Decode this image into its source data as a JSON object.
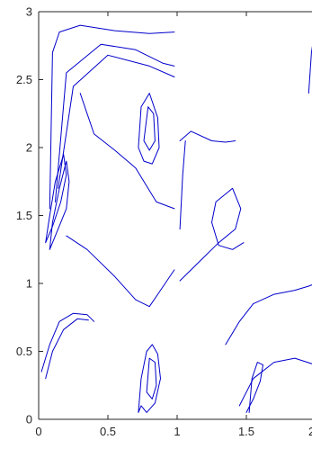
{
  "chart_data": {
    "type": "line",
    "title": "",
    "xlabel": "",
    "ylabel": "",
    "xlim": [
      0,
      2
    ],
    "ylim": [
      0,
      3
    ],
    "x_ticks": [
      0,
      0.5,
      1,
      1.5,
      2
    ],
    "x_tick_labels": [
      "0",
      "0.5",
      "1",
      "1.5",
      "2"
    ],
    "y_ticks": [
      0,
      0.5,
      1,
      1.5,
      2,
      2.5,
      3
    ],
    "y_tick_labels": [
      "0",
      "0.5",
      "1",
      "1.5",
      "2",
      "2.5",
      "3"
    ],
    "grid": false,
    "line_color": "#0000cc",
    "description_of_marks": "streamlines",
    "series": [
      {
        "x": [
          0.08,
          0.1,
          0.15,
          0.3,
          0.55,
          0.8,
          0.98
        ],
        "y": [
          1.55,
          2.7,
          2.85,
          2.9,
          2.86,
          2.84,
          2.85
        ]
      },
      {
        "x": [
          0.12,
          0.2,
          0.45,
          0.7,
          0.9,
          0.98
        ],
        "y": [
          1.6,
          2.55,
          2.76,
          2.72,
          2.62,
          2.6
        ]
      },
      {
        "x": [
          0.14,
          0.25,
          0.5,
          0.8,
          0.98
        ],
        "y": [
          1.7,
          2.45,
          2.68,
          2.6,
          2.52
        ]
      },
      {
        "x": [
          0.05,
          0.1,
          0.16,
          0.2,
          0.18,
          0.12,
          0.08,
          0.05
        ],
        "y": [
          1.3,
          1.42,
          1.6,
          1.8,
          1.95,
          1.75,
          1.5,
          1.3
        ]
      },
      {
        "x": [
          0.08,
          0.14,
          0.2,
          0.22,
          0.2,
          0.15,
          0.1,
          0.08
        ],
        "y": [
          1.25,
          1.4,
          1.55,
          1.75,
          1.9,
          1.7,
          1.45,
          1.25
        ]
      },
      {
        "x": [
          0.3,
          0.35,
          0.4,
          0.55,
          0.7,
          0.85,
          0.98
        ],
        "y": [
          2.4,
          2.25,
          2.1,
          1.98,
          1.85,
          1.6,
          1.55
        ]
      },
      {
        "x": [
          0.72,
          0.76,
          0.82,
          0.87,
          0.86,
          0.8,
          0.74,
          0.72
        ],
        "y": [
          2.0,
          1.9,
          1.88,
          2.0,
          2.22,
          2.4,
          2.3,
          2.0
        ]
      },
      {
        "x": [
          0.76,
          0.8,
          0.84,
          0.83,
          0.79,
          0.76
        ],
        "y": [
          2.05,
          1.98,
          2.05,
          2.25,
          2.3,
          2.05
        ]
      },
      {
        "x": [
          0.2,
          0.35,
          0.55,
          0.7,
          0.8,
          0.88,
          0.98
        ],
        "y": [
          1.35,
          1.25,
          1.05,
          0.88,
          0.83,
          0.95,
          1.1
        ]
      },
      {
        "x": [
          0.02,
          0.08,
          0.15,
          0.25,
          0.35,
          0.4
        ],
        "y": [
          0.35,
          0.55,
          0.72,
          0.78,
          0.77,
          0.72
        ]
      },
      {
        "x": [
          0.05,
          0.1,
          0.18,
          0.28,
          0.36
        ],
        "y": [
          0.3,
          0.5,
          0.66,
          0.74,
          0.73
        ]
      },
      {
        "x": [
          0.72,
          0.74,
          0.78,
          0.82,
          0.86,
          0.88,
          0.84,
          0.78,
          0.74,
          0.72
        ],
        "y": [
          0.05,
          0.3,
          0.5,
          0.55,
          0.48,
          0.3,
          0.12,
          0.05,
          0.1,
          0.05
        ]
      },
      {
        "x": [
          0.78,
          0.82,
          0.85,
          0.84,
          0.8,
          0.78
        ],
        "y": [
          0.2,
          0.15,
          0.25,
          0.42,
          0.45,
          0.2
        ]
      },
      {
        "x": [
          1.02,
          1.1,
          1.25,
          1.35,
          1.42
        ],
        "y": [
          2.05,
          2.12,
          2.05,
          2.04,
          2.05
        ]
      },
      {
        "x": [
          1.02,
          1.04,
          1.06
        ],
        "y": [
          1.4,
          1.8,
          2.05
        ]
      },
      {
        "x": [
          1.02,
          1.15,
          1.3,
          1.42,
          1.46,
          1.4,
          1.28,
          1.25,
          1.3,
          1.4,
          1.48
        ],
        "y": [
          1.02,
          1.15,
          1.3,
          1.4,
          1.55,
          1.7,
          1.6,
          1.45,
          1.28,
          1.25,
          1.3
        ]
      },
      {
        "x": [
          1.35,
          1.45,
          1.55,
          1.7,
          1.85,
          1.95,
          2.0
        ],
        "y": [
          0.55,
          0.72,
          0.85,
          0.92,
          0.95,
          0.98,
          1.0
        ]
      },
      {
        "x": [
          1.45,
          1.55,
          1.7,
          1.85,
          2.0
        ],
        "y": [
          0.1,
          0.3,
          0.42,
          0.45,
          0.4
        ]
      },
      {
        "x": [
          1.5,
          1.55,
          1.6,
          1.62,
          1.58,
          1.54,
          1.52
        ],
        "y": [
          0.05,
          0.15,
          0.28,
          0.4,
          0.42,
          0.3,
          0.05
        ]
      },
      {
        "x": [
          1.95,
          1.97,
          2.0
        ],
        "y": [
          2.4,
          2.7,
          2.9
        ]
      }
    ]
  }
}
